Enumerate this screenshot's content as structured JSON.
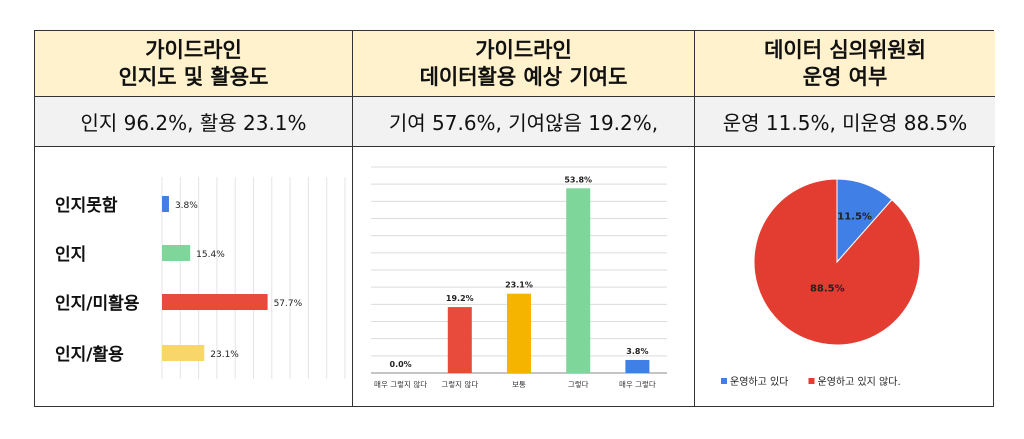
{
  "columns": [
    {
      "title_line1": "가이드라인",
      "title_line2": "인지도 및 활용도",
      "summary": "인지 96.2%, 활용 23.1%"
    },
    {
      "title_line1": "가이드라인",
      "title_line2": "데이터활용 예상 기여도",
      "summary": "기여 57.6%, 기여않음 19.2%,"
    },
    {
      "title_line1": "데이터 심의위원회",
      "title_line2": "운영 여부",
      "summary": "운영 11.5%, 미운영 88.5%"
    }
  ],
  "chart_data": [
    {
      "type": "bar",
      "orientation": "horizontal",
      "categories": [
        "인지못함",
        "인지",
        "인지/미활용",
        "인지/활용"
      ],
      "values": [
        3.8,
        15.4,
        57.7,
        23.1
      ],
      "labels": [
        "3.8%",
        "15.4%",
        "57.7%",
        "23.1%"
      ],
      "colors": [
        "#3f7fe6",
        "#7ed69a",
        "#e84a3c",
        "#f8d66a"
      ],
      "xlim": [
        0,
        100
      ],
      "grid": true
    },
    {
      "type": "bar",
      "categories": [
        "매우 그렇지 않다",
        "그렇지 않다",
        "보통",
        "그렇다",
        "매우 그렇다"
      ],
      "values": [
        0.0,
        19.2,
        23.1,
        53.8,
        3.8
      ],
      "labels": [
        "0.0%",
        "19.2%",
        "23.1%",
        "53.8%",
        "3.8%"
      ],
      "colors": [
        "#e84a3c",
        "#e84a3c",
        "#f5b400",
        "#7ed69a",
        "#3f7fe6"
      ],
      "ylim": [
        0,
        60
      ],
      "grid": true
    },
    {
      "type": "pie",
      "categories": [
        "운영하고 있다",
        "운영하고 있지 않다."
      ],
      "values": [
        11.5,
        88.5
      ],
      "labels": [
        "11.5%",
        "88.5%"
      ],
      "colors": [
        "#3f7fe6",
        "#e23d30"
      ],
      "legend": "bottom"
    }
  ]
}
